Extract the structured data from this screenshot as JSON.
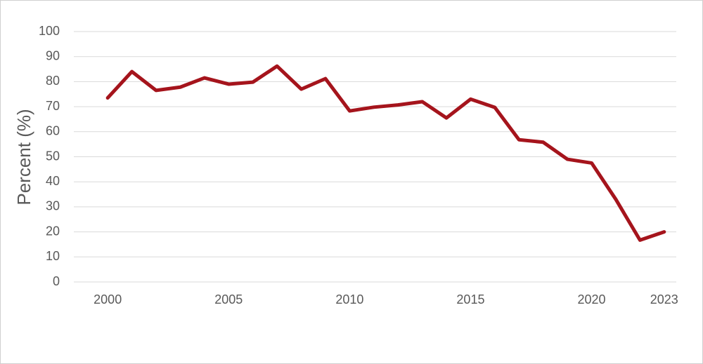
{
  "chart_data": {
    "type": "line",
    "y_label": "Percent (%)",
    "x": [
      2000,
      2001,
      2002,
      2003,
      2004,
      2005,
      2006,
      2007,
      2008,
      2009,
      2010,
      2011,
      2012,
      2013,
      2014,
      2015,
      2016,
      2017,
      2018,
      2019,
      2020,
      2021,
      2022,
      2023
    ],
    "values": [
      73.5,
      84,
      76.5,
      77.8,
      81.5,
      79,
      79.8,
      86.2,
      77,
      81.2,
      68.3,
      69.8,
      70.7,
      72,
      65.5,
      73,
      69.7,
      56.8,
      55.8,
      49,
      47.5,
      33,
      16.7,
      20
    ],
    "color": "#a5141c",
    "xlim": [
      1998.6,
      2023.5
    ],
    "xticks": [
      2000,
      2005,
      2010,
      2015,
      2020,
      2023
    ],
    "ylim": [
      0,
      100
    ],
    "yticks": [
      0,
      10,
      20,
      30,
      40,
      50,
      60,
      70,
      80,
      90,
      100
    ],
    "grid": true
  }
}
